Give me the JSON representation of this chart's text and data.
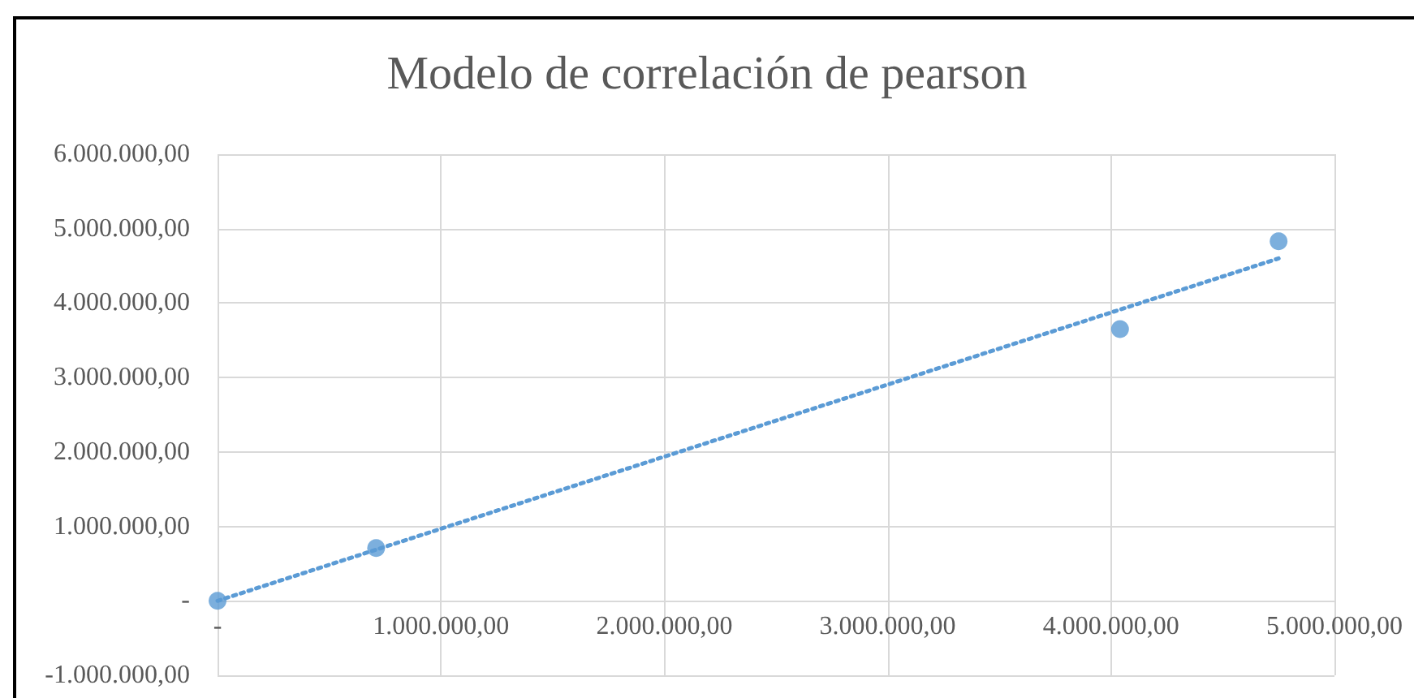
{
  "chart_data": {
    "type": "scatter",
    "title": "Modelo de correlación de pearson",
    "series": [
      {
        "color": "#5b9bd5",
        "marker": "circle",
        "x": [
          0,
          710000,
          4040000,
          4750000
        ],
        "values": [
          0,
          710000,
          3650000,
          4830000
        ]
      },
      {
        "type": "line",
        "color": "#5b9bd5",
        "marker": "none",
        "line_style": "dotted",
        "x": [
          0,
          4750000
        ],
        "values": [
          0,
          4600000
        ]
      }
    ],
    "xlim": [
      0,
      5000000
    ],
    "xticks": [
      {
        "value": 0,
        "label": "-"
      },
      {
        "value": 1000000,
        "label": "1.000.000,00"
      },
      {
        "value": 2000000,
        "label": "2.000.000,00"
      },
      {
        "value": 3000000,
        "label": "3.000.000,00"
      },
      {
        "value": 4000000,
        "label": "4.000.000,00"
      },
      {
        "value": 5000000,
        "label": "5.000.000,00"
      }
    ],
    "ylim": [
      -1000000,
      6000000
    ],
    "yticks": [
      {
        "value": -1000000,
        "label": "-1.000.000,00"
      },
      {
        "value": 0,
        "label": "-"
      },
      {
        "value": 1000000,
        "label": "1.000.000,00"
      },
      {
        "value": 2000000,
        "label": "2.000.000,00"
      },
      {
        "value": 3000000,
        "label": "3.000.000,00"
      },
      {
        "value": 4000000,
        "label": "4.000.000,00"
      },
      {
        "value": 5000000,
        "label": "5.000.000,00"
      },
      {
        "value": 6000000,
        "label": "6.000.000,00"
      }
    ],
    "grid": true
  }
}
